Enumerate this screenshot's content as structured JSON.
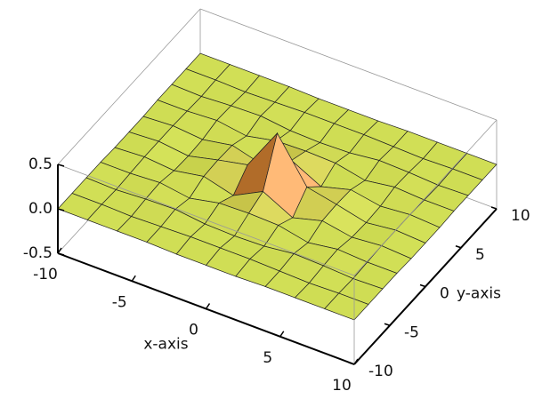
{
  "chart_data": {
    "type": "surface",
    "x": [
      -10,
      -8,
      -6,
      -4,
      -2,
      0,
      2,
      4,
      6,
      8,
      10
    ],
    "y": [
      -10,
      -8,
      -6,
      -4,
      -2,
      0,
      2,
      4,
      6,
      8,
      10
    ],
    "z": [
      [
        0,
        0,
        0,
        0,
        -0.01,
        -0.01,
        -0.01,
        0,
        0,
        0,
        0
      ],
      [
        0,
        0,
        -0.01,
        0,
        0.01,
        0.01,
        0.01,
        0,
        -0.01,
        0,
        0
      ],
      [
        0,
        -0.01,
        0.01,
        0.02,
        -0.02,
        -0.03,
        -0.02,
        0.02,
        0.01,
        -0.01,
        0
      ],
      [
        0,
        0,
        0.02,
        -0.03,
        0.04,
        0.05,
        0.04,
        -0.03,
        0.02,
        0,
        0
      ],
      [
        -0.01,
        0.01,
        -0.02,
        0.04,
        -0.05,
        0.12,
        -0.05,
        0.04,
        -0.02,
        0.01,
        -0.01
      ],
      [
        -0.01,
        0.01,
        -0.03,
        0.05,
        0.12,
        0.6,
        0.12,
        0.05,
        -0.03,
        0.01,
        -0.01
      ],
      [
        -0.01,
        0.01,
        -0.02,
        0.04,
        -0.05,
        0.12,
        -0.05,
        0.04,
        -0.02,
        0.01,
        -0.01
      ],
      [
        0,
        0,
        0.02,
        -0.03,
        0.04,
        0.05,
        0.04,
        -0.03,
        0.02,
        0,
        0
      ],
      [
        0,
        -0.01,
        0.01,
        0.02,
        -0.02,
        -0.03,
        -0.02,
        0.02,
        0.01,
        -0.01,
        0
      ],
      [
        0,
        0,
        -0.01,
        0,
        0.01,
        0.01,
        0.01,
        0,
        -0.01,
        0,
        0
      ],
      [
        0,
        0,
        0,
        0,
        -0.01,
        -0.01,
        -0.01,
        0,
        0,
        0,
        0
      ]
    ],
    "xlim": [
      -10,
      10
    ],
    "ylim": [
      -10,
      10
    ],
    "zlim": [
      -0.5,
      0.5
    ],
    "xticks": [
      -10,
      -5,
      0,
      5,
      10
    ],
    "yticks": [
      -10,
      -5,
      0,
      5,
      10
    ],
    "zticks": [
      -0.5,
      {
        "value": 0,
        "label": "0.0"
      },
      0.5
    ],
    "xlabel": "x-axis",
    "ylabel": "y-axis",
    "color": "#d2df55"
  }
}
